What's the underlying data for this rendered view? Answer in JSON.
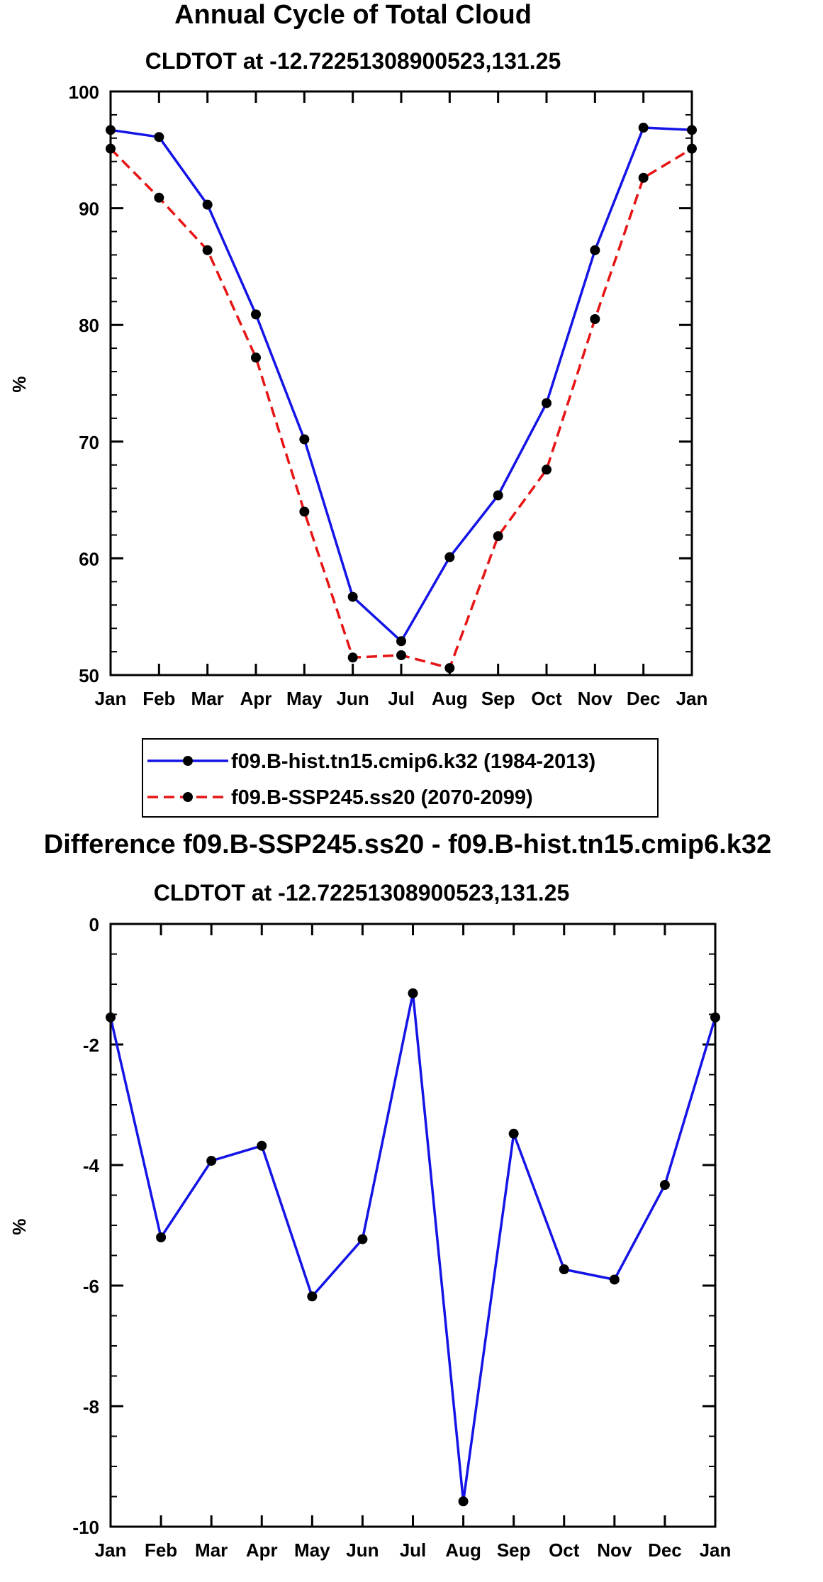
{
  "chart_data": [
    {
      "type": "line",
      "title": "Annual Cycle of Total Cloud",
      "subtitle": "CLDTOT at -12.72251308900523,131.25",
      "xlabel": "",
      "ylabel": "%",
      "categories": [
        "Jan",
        "Feb",
        "Mar",
        "Apr",
        "May",
        "Jun",
        "Jul",
        "Aug",
        "Sep",
        "Oct",
        "Nov",
        "Dec",
        "Jan"
      ],
      "ylim": [
        50,
        100
      ],
      "yticks": [
        50,
        60,
        70,
        80,
        90,
        100
      ],
      "grid": false,
      "legend_position": "bottom",
      "series": [
        {
          "name": "f09.B-hist.tn15.cmip6.k32 (1984-2013)",
          "color": "#1414e6",
          "dashed": false,
          "values": [
            96.7,
            96.1,
            90.3,
            80.9,
            70.2,
            56.7,
            52.9,
            60.1,
            65.4,
            73.3,
            86.4,
            96.9,
            96.7
          ]
        },
        {
          "name": "f09.B-SSP245.ss20 (2070-2099)",
          "color": "#e61414",
          "dashed": true,
          "values": [
            95.1,
            90.9,
            86.4,
            77.2,
            64.0,
            51.5,
            51.7,
            50.6,
            61.9,
            67.6,
            80.5,
            92.6,
            95.1
          ]
        }
      ]
    },
    {
      "type": "line",
      "title": "Difference f09.B-SSP245.ss20 - f09.B-hist.tn15.cmip6.k32",
      "subtitle": "CLDTOT at -12.72251308900523,131.25",
      "xlabel": "",
      "ylabel": "%",
      "categories": [
        "Jan",
        "Feb",
        "Mar",
        "Apr",
        "May",
        "Jun",
        "Jul",
        "Aug",
        "Sep",
        "Oct",
        "Nov",
        "Dec",
        "Jan"
      ],
      "ylim": [
        -10,
        0
      ],
      "yticks": [
        -10,
        -8,
        -6,
        -4,
        -2,
        0
      ],
      "grid": false,
      "series": [
        {
          "name": "Difference",
          "color": "#1414e6",
          "dashed": false,
          "values": [
            -1.55,
            -5.2,
            -3.93,
            -3.68,
            -6.18,
            -5.23,
            -1.15,
            -9.58,
            -3.48,
            -5.73,
            -5.9,
            -4.33,
            -1.55
          ]
        }
      ]
    }
  ]
}
